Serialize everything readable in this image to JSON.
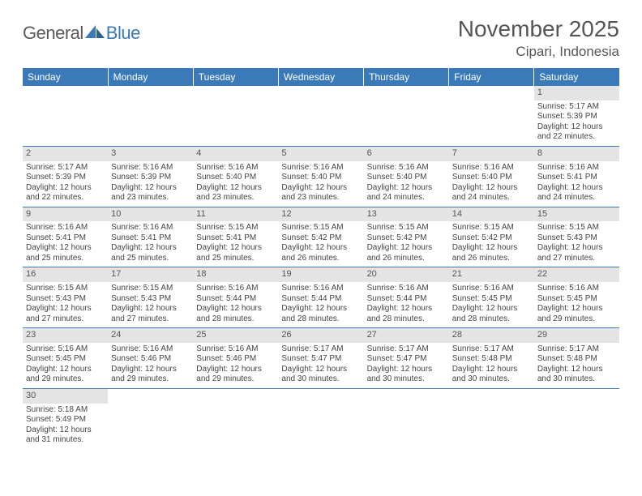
{
  "brand": {
    "part1": "General",
    "part2": "Blue"
  },
  "title": "November 2025",
  "location": "Cipari, Indonesia",
  "colors": {
    "header_bg": "#3a7ab8",
    "header_fg": "#ffffff",
    "daynum_bg": "#e4e4e4",
    "row_divider": "#3a7ab8",
    "text": "#444444",
    "title_text": "#555555"
  },
  "dayNames": [
    "Sunday",
    "Monday",
    "Tuesday",
    "Wednesday",
    "Thursday",
    "Friday",
    "Saturday"
  ],
  "weeks": [
    [
      null,
      null,
      null,
      null,
      null,
      null,
      {
        "n": "1",
        "sr": "5:17 AM",
        "ss": "5:39 PM",
        "dl": "12 hours and 22 minutes."
      }
    ],
    [
      {
        "n": "2",
        "sr": "5:17 AM",
        "ss": "5:39 PM",
        "dl": "12 hours and 22 minutes."
      },
      {
        "n": "3",
        "sr": "5:16 AM",
        "ss": "5:39 PM",
        "dl": "12 hours and 23 minutes."
      },
      {
        "n": "4",
        "sr": "5:16 AM",
        "ss": "5:40 PM",
        "dl": "12 hours and 23 minutes."
      },
      {
        "n": "5",
        "sr": "5:16 AM",
        "ss": "5:40 PM",
        "dl": "12 hours and 23 minutes."
      },
      {
        "n": "6",
        "sr": "5:16 AM",
        "ss": "5:40 PM",
        "dl": "12 hours and 24 minutes."
      },
      {
        "n": "7",
        "sr": "5:16 AM",
        "ss": "5:40 PM",
        "dl": "12 hours and 24 minutes."
      },
      {
        "n": "8",
        "sr": "5:16 AM",
        "ss": "5:41 PM",
        "dl": "12 hours and 24 minutes."
      }
    ],
    [
      {
        "n": "9",
        "sr": "5:16 AM",
        "ss": "5:41 PM",
        "dl": "12 hours and 25 minutes."
      },
      {
        "n": "10",
        "sr": "5:16 AM",
        "ss": "5:41 PM",
        "dl": "12 hours and 25 minutes."
      },
      {
        "n": "11",
        "sr": "5:15 AM",
        "ss": "5:41 PM",
        "dl": "12 hours and 25 minutes."
      },
      {
        "n": "12",
        "sr": "5:15 AM",
        "ss": "5:42 PM",
        "dl": "12 hours and 26 minutes."
      },
      {
        "n": "13",
        "sr": "5:15 AM",
        "ss": "5:42 PM",
        "dl": "12 hours and 26 minutes."
      },
      {
        "n": "14",
        "sr": "5:15 AM",
        "ss": "5:42 PM",
        "dl": "12 hours and 26 minutes."
      },
      {
        "n": "15",
        "sr": "5:15 AM",
        "ss": "5:43 PM",
        "dl": "12 hours and 27 minutes."
      }
    ],
    [
      {
        "n": "16",
        "sr": "5:15 AM",
        "ss": "5:43 PM",
        "dl": "12 hours and 27 minutes."
      },
      {
        "n": "17",
        "sr": "5:15 AM",
        "ss": "5:43 PM",
        "dl": "12 hours and 27 minutes."
      },
      {
        "n": "18",
        "sr": "5:16 AM",
        "ss": "5:44 PM",
        "dl": "12 hours and 28 minutes."
      },
      {
        "n": "19",
        "sr": "5:16 AM",
        "ss": "5:44 PM",
        "dl": "12 hours and 28 minutes."
      },
      {
        "n": "20",
        "sr": "5:16 AM",
        "ss": "5:44 PM",
        "dl": "12 hours and 28 minutes."
      },
      {
        "n": "21",
        "sr": "5:16 AM",
        "ss": "5:45 PM",
        "dl": "12 hours and 28 minutes."
      },
      {
        "n": "22",
        "sr": "5:16 AM",
        "ss": "5:45 PM",
        "dl": "12 hours and 29 minutes."
      }
    ],
    [
      {
        "n": "23",
        "sr": "5:16 AM",
        "ss": "5:45 PM",
        "dl": "12 hours and 29 minutes."
      },
      {
        "n": "24",
        "sr": "5:16 AM",
        "ss": "5:46 PM",
        "dl": "12 hours and 29 minutes."
      },
      {
        "n": "25",
        "sr": "5:16 AM",
        "ss": "5:46 PM",
        "dl": "12 hours and 29 minutes."
      },
      {
        "n": "26",
        "sr": "5:17 AM",
        "ss": "5:47 PM",
        "dl": "12 hours and 30 minutes."
      },
      {
        "n": "27",
        "sr": "5:17 AM",
        "ss": "5:47 PM",
        "dl": "12 hours and 30 minutes."
      },
      {
        "n": "28",
        "sr": "5:17 AM",
        "ss": "5:48 PM",
        "dl": "12 hours and 30 minutes."
      },
      {
        "n": "29",
        "sr": "5:17 AM",
        "ss": "5:48 PM",
        "dl": "12 hours and 30 minutes."
      }
    ],
    [
      {
        "n": "30",
        "sr": "5:18 AM",
        "ss": "5:49 PM",
        "dl": "12 hours and 31 minutes."
      },
      null,
      null,
      null,
      null,
      null,
      null
    ]
  ],
  "labels": {
    "sunrise": "Sunrise: ",
    "sunset": "Sunset: ",
    "daylight": "Daylight: "
  }
}
